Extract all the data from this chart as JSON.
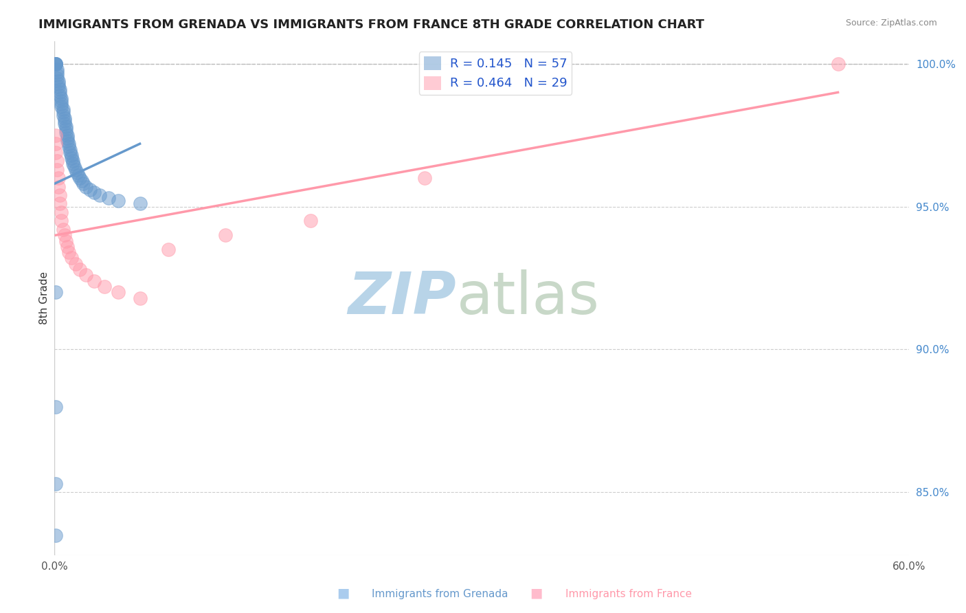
{
  "title": "IMMIGRANTS FROM GRENADA VS IMMIGRANTS FROM FRANCE 8TH GRADE CORRELATION CHART",
  "source": "Source: ZipAtlas.com",
  "xlabel_grenada": "Immigrants from Grenada",
  "xlabel_france": "Immigrants from France",
  "ylabel": "8th Grade",
  "xlim": [
    0.0,
    0.6
  ],
  "ylim": [
    0.828,
    1.008
  ],
  "xticks": [
    0.0,
    0.1,
    0.2,
    0.3,
    0.4,
    0.5,
    0.6
  ],
  "xtick_labels": [
    "0.0%",
    "",
    "",
    "",
    "",
    "",
    "60.0%"
  ],
  "yticks_right": [
    0.85,
    0.9,
    0.95,
    1.0
  ],
  "ytick_right_labels": [
    "85.0%",
    "90.0%",
    "95.0%",
    "100.0%"
  ],
  "grenada_color": "#6699cc",
  "france_color": "#ff99aa",
  "grenada_R": "0.145",
  "grenada_N": "57",
  "france_R": "0.464",
  "france_N": "29",
  "background_color": "#ffffff",
  "watermark_zip": "ZIP",
  "watermark_atlas": "atlas",
  "watermark_color_zip": "#b8d4e8",
  "watermark_color_atlas": "#c8d8c8",
  "grenada_x": [
    0.001,
    0.001,
    0.001,
    0.001,
    0.001,
    0.002,
    0.002,
    0.002,
    0.002,
    0.003,
    0.003,
    0.003,
    0.004,
    0.004,
    0.004,
    0.005,
    0.005,
    0.005,
    0.005,
    0.006,
    0.006,
    0.006,
    0.007,
    0.007,
    0.007,
    0.008,
    0.008,
    0.008,
    0.009,
    0.009,
    0.009,
    0.01,
    0.01,
    0.011,
    0.011,
    0.012,
    0.012,
    0.013,
    0.013,
    0.014,
    0.015,
    0.016,
    0.017,
    0.018,
    0.019,
    0.02,
    0.022,
    0.025,
    0.028,
    0.032,
    0.038,
    0.045,
    0.06,
    0.001,
    0.001,
    0.001,
    0.001
  ],
  "grenada_y": [
    1.0,
    1.0,
    1.0,
    1.0,
    1.0,
    0.998,
    0.997,
    0.996,
    0.995,
    0.994,
    0.993,
    0.992,
    0.991,
    0.99,
    0.989,
    0.988,
    0.987,
    0.986,
    0.985,
    0.984,
    0.983,
    0.982,
    0.981,
    0.98,
    0.979,
    0.978,
    0.977,
    0.976,
    0.975,
    0.974,
    0.973,
    0.972,
    0.971,
    0.97,
    0.969,
    0.968,
    0.967,
    0.966,
    0.965,
    0.964,
    0.963,
    0.962,
    0.961,
    0.96,
    0.959,
    0.958,
    0.957,
    0.956,
    0.955,
    0.954,
    0.953,
    0.952,
    0.951,
    0.92,
    0.88,
    0.853,
    0.835
  ],
  "france_x": [
    0.001,
    0.001,
    0.001,
    0.002,
    0.002,
    0.003,
    0.003,
    0.004,
    0.004,
    0.005,
    0.005,
    0.006,
    0.007,
    0.008,
    0.009,
    0.01,
    0.012,
    0.015,
    0.018,
    0.022,
    0.028,
    0.035,
    0.045,
    0.06,
    0.08,
    0.12,
    0.18,
    0.26,
    0.55
  ],
  "france_y": [
    0.975,
    0.972,
    0.969,
    0.966,
    0.963,
    0.96,
    0.957,
    0.954,
    0.951,
    0.948,
    0.945,
    0.942,
    0.94,
    0.938,
    0.936,
    0.934,
    0.932,
    0.93,
    0.928,
    0.926,
    0.924,
    0.922,
    0.92,
    0.918,
    0.935,
    0.94,
    0.945,
    0.96,
    1.0
  ],
  "grenada_trendline_x": [
    0.0,
    0.06
  ],
  "grenada_trendline_y": [
    0.958,
    0.972
  ],
  "france_trendline_x": [
    0.001,
    0.55
  ],
  "france_trendline_y": [
    0.94,
    0.99
  ]
}
